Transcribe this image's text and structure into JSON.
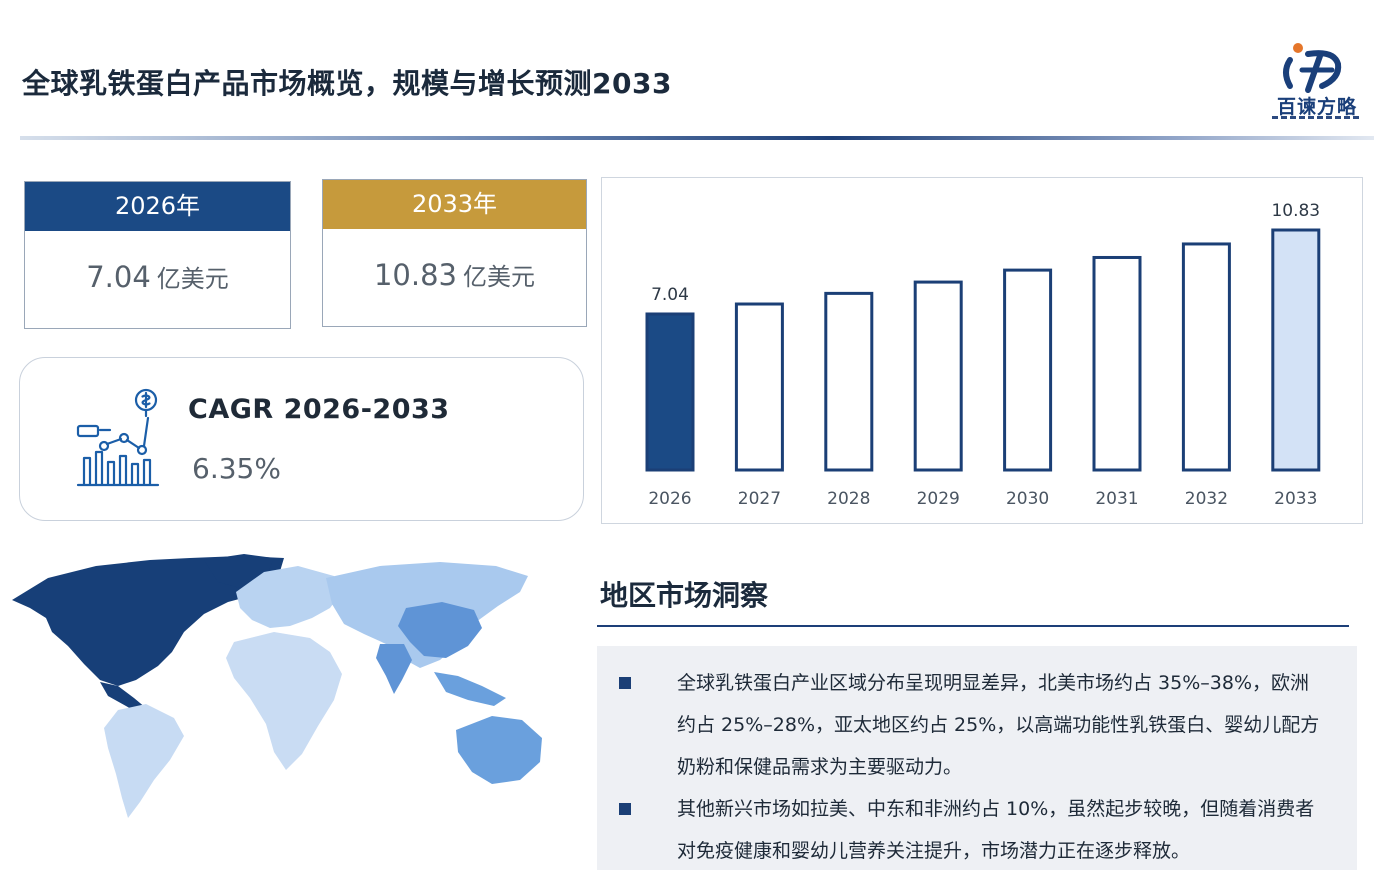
{
  "header": {
    "title": "全球乳铁蛋白产品市场概览，规模与增长预测2033",
    "logo_text": "百谏方略"
  },
  "cards": [
    {
      "year": "2026年",
      "value": "7.04",
      "unit": "亿美元",
      "color": "#1b4a85"
    },
    {
      "year": "2033年",
      "value": "10.83",
      "unit": "亿美元",
      "color": "#c69a3c"
    }
  ],
  "cagr": {
    "label": "CAGR 2026-2033",
    "value": "6.35%"
  },
  "chart_data": {
    "type": "bar",
    "categories": [
      "2026",
      "2027",
      "2028",
      "2029",
      "2030",
      "2031",
      "2032",
      "2033"
    ],
    "values": [
      7.04,
      7.49,
      7.97,
      8.48,
      9.02,
      9.59,
      10.2,
      10.83
    ],
    "data_labels": [
      "7.04",
      "",
      "",
      "",
      "",
      "",
      "",
      "10.83"
    ],
    "ylim": [
      0,
      11
    ],
    "grid": false,
    "legend": false,
    "colors": {
      "first_fill": "#1b4a85",
      "middle_fill": "#ffffff",
      "last_fill": "#d3e2f6",
      "outline": "#1b3f76"
    }
  },
  "region": {
    "title": "地区市场洞察",
    "bullets": [
      "全球乳铁蛋白产业区域分布呈现明显差异，北美市场约占 35%–38%，欧洲约占 25%–28%，亚太地区约占 25%，以高端功能性乳铁蛋白、婴幼儿配方奶粉和保健品需求为主要驱动力。",
      "其他新兴市场如拉美、中东和非洲约占 10%，虽然起步较晚，但随着消费者对免疫健康和婴幼儿营养关注提升，市场潜力正在逐步释放。"
    ]
  },
  "map_colors": {
    "north_america": "#173f78",
    "europe": "#b9d3f1",
    "asia": "#a9c9ee",
    "china": "#5f94d6",
    "south_america": "#c7dbf3",
    "africa": "#c9dcf3",
    "oceania": "#6aa0dd"
  }
}
